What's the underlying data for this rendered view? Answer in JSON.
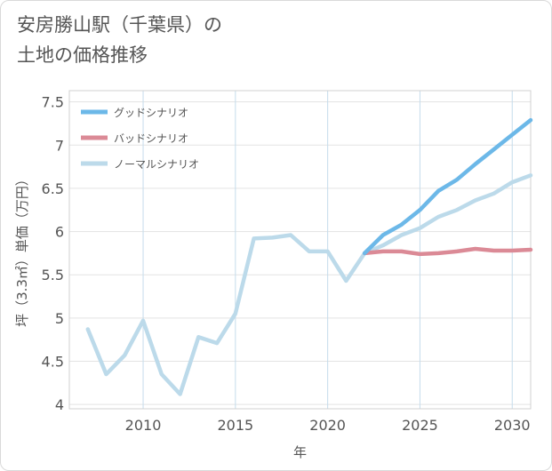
{
  "chart_data": {
    "type": "line",
    "title": "安房勝山駅（千葉県）の土地の価格推移",
    "title_lines": [
      "安房勝山駅（千葉県）の",
      "土地の価格推移"
    ],
    "xlabel": "年",
    "ylabel": "坪（3.3㎡）単価（万円）",
    "xlim": [
      2006,
      2031
    ],
    "ylim": [
      3.95,
      7.63
    ],
    "x_ticks": [
      2010,
      2015,
      2020,
      2025,
      2030
    ],
    "y_ticks": [
      4,
      4.5,
      5,
      5.5,
      6,
      6.5,
      7,
      7.5
    ],
    "y_tick_labels": [
      "4",
      "4.5",
      "5",
      "5.5",
      "6",
      "6.5",
      "7",
      "7.5"
    ],
    "grid": true,
    "legend_position": "top-left",
    "series": [
      {
        "name": "グッドシナリオ",
        "color": "#6cb8e8",
        "x": [
          2022,
          2023,
          2024,
          2025,
          2026,
          2027,
          2028,
          2029,
          2030,
          2031
        ],
        "values": [
          5.75,
          5.96,
          6.08,
          6.25,
          6.47,
          6.6,
          6.78,
          6.95,
          7.12,
          7.29
        ]
      },
      {
        "name": "バッドシナリオ",
        "color": "#db8a96",
        "x": [
          2022,
          2023,
          2024,
          2025,
          2026,
          2027,
          2028,
          2029,
          2030,
          2031
        ],
        "values": [
          5.75,
          5.77,
          5.77,
          5.74,
          5.75,
          5.77,
          5.8,
          5.78,
          5.78,
          5.79
        ]
      },
      {
        "name": "ノーマルシナリオ",
        "color": "#bcdaea",
        "x": [
          2007,
          2008,
          2009,
          2010,
          2011,
          2012,
          2013,
          2014,
          2015,
          2016,
          2017,
          2018,
          2019,
          2020,
          2021,
          2022,
          2023,
          2024,
          2025,
          2026,
          2027,
          2028,
          2029,
          2030,
          2031
        ],
        "values": [
          4.87,
          4.35,
          4.57,
          4.97,
          4.35,
          4.12,
          4.78,
          4.71,
          5.05,
          5.92,
          5.93,
          5.96,
          5.77,
          5.77,
          5.43,
          5.75,
          5.84,
          5.96,
          6.04,
          6.17,
          6.25,
          6.36,
          6.44,
          6.57,
          6.65
        ]
      }
    ]
  }
}
